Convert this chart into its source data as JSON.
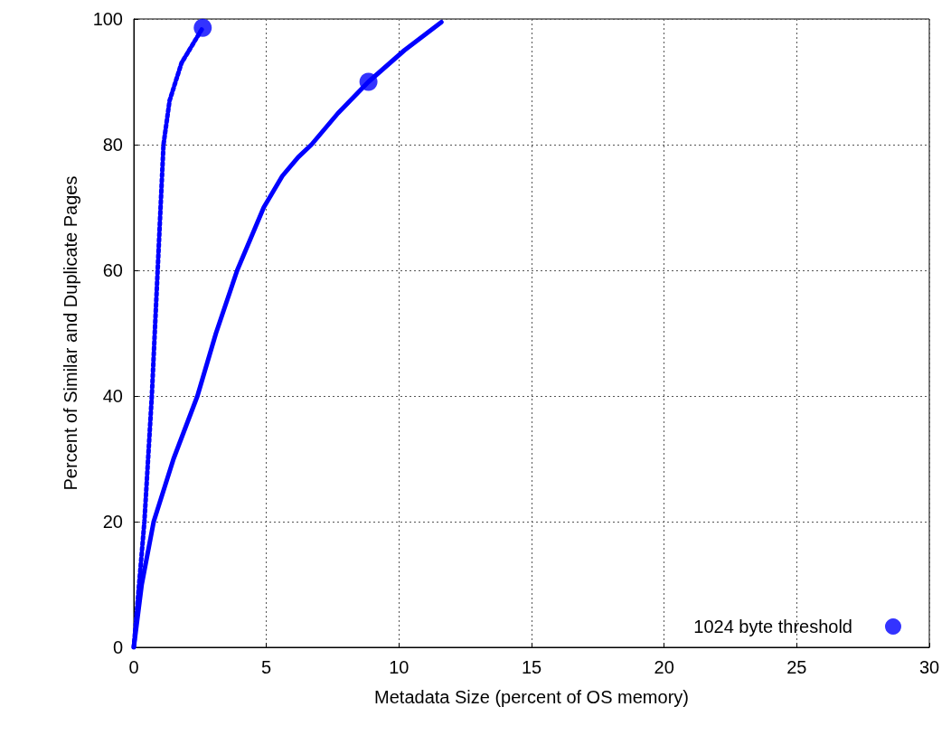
{
  "chart_data": {
    "type": "line",
    "xlabel": "Metadata Size (percent of OS memory)",
    "ylabel": "Percent of Similar and Duplicate Pages",
    "xlim": [
      0,
      30
    ],
    "xticks": [
      0,
      5,
      10,
      15,
      20,
      25,
      30
    ],
    "ylim": [
      0,
      100
    ],
    "yticks": [
      0,
      20,
      40,
      60,
      80,
      100
    ],
    "grid": true,
    "legend": "bottom right",
    "marker": "none",
    "series": [
      {
        "color": "#0000ff",
        "line_style": "solid",
        "x": [
          0,
          0.3,
          0.75,
          1.5,
          2.4,
          3.1,
          3.9,
          4.9,
          5.6,
          6.2,
          6.7,
          7.7,
          8.85,
          10.2,
          11.6
        ],
        "values": [
          0,
          10,
          20,
          30,
          40,
          50,
          60,
          70,
          75,
          78,
          80,
          85,
          90,
          95,
          99.5
        ]
      },
      {
        "color": "#0000ff",
        "line_style": "dotted",
        "x": [
          0,
          0.2,
          0.4,
          0.68,
          0.9,
          1.12,
          1.35,
          1.8,
          2.6
        ],
        "values": [
          0,
          10,
          20,
          40,
          60,
          80,
          87,
          93,
          98.6
        ]
      },
      {
        "name": "1024 byte threshold",
        "type": "scatter",
        "marker": "circle",
        "color": "#0000ff",
        "x": [
          2.6,
          8.85
        ],
        "values": [
          98.6,
          90
        ]
      }
    ]
  }
}
